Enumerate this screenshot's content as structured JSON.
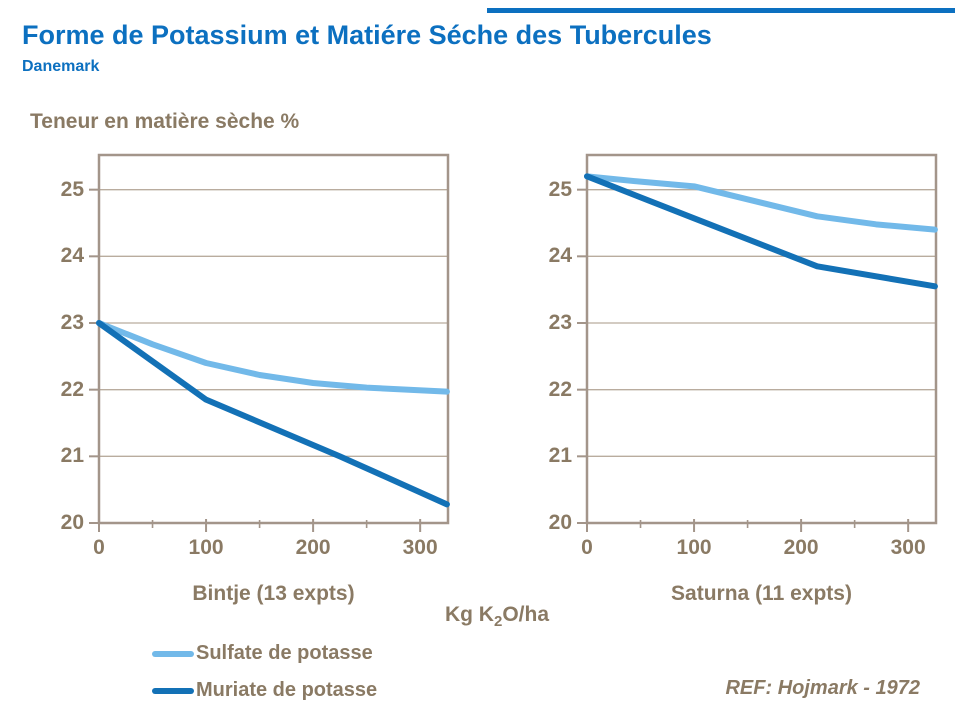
{
  "page": {
    "title": "Forme de Potassium et Matiére Séche des Tubercules",
    "subtitle": "Danemark",
    "y_axis_title": "Teneur en matière sèche %",
    "x_axis_title_pre": "Kg K",
    "x_axis_title_sub": "2",
    "x_axis_title_post": "O/ha",
    "reference": "REF: Hojmark - 1972"
  },
  "colors": {
    "accent_blue": "#0c70c0",
    "text_brown": "#8a7a64",
    "plot_border": "#a3958a",
    "gridline": "#b9ac9e",
    "sulfate_light_blue": "#72b9e9",
    "muriate_dark_blue": "#1371b6"
  },
  "legend": {
    "items": [
      {
        "label": "Sulfate de potasse",
        "color": "#72b9e9"
      },
      {
        "label": "Muriate de potasse",
        "color": "#1371b6"
      }
    ]
  },
  "chart_data": [
    {
      "type": "line",
      "title": "Bintje (13 expts)",
      "xlabel": "Kg K2O/ha",
      "ylabel": "Teneur en matière sèche %",
      "xlim": [
        0,
        326
      ],
      "ylim": [
        20,
        25.52
      ],
      "x_ticks": [
        0,
        100,
        200,
        300
      ],
      "x_minor_ticks": [
        50,
        150,
        250
      ],
      "y_ticks": [
        20,
        21,
        22,
        23,
        24,
        25
      ],
      "grid": "horizontal",
      "legend_position": "below-left",
      "series": [
        {
          "name": "Sulfate de potasse",
          "color": "#72b9e9",
          "points": [
            [
              0,
              23.0
            ],
            [
              50,
              22.68
            ],
            [
              100,
              22.4
            ],
            [
              150,
              22.22
            ],
            [
              200,
              22.1
            ],
            [
              250,
              22.03
            ],
            [
              325,
              21.97
            ]
          ]
        },
        {
          "name": "Muriate de potasse",
          "color": "#1371b6",
          "points": [
            [
              0,
              23.0
            ],
            [
              100,
              21.85
            ],
            [
              225,
              21.0
            ],
            [
              325,
              20.28
            ]
          ]
        }
      ]
    },
    {
      "type": "line",
      "title": "Saturna (11 expts)",
      "xlabel": "Kg K2O/ha",
      "ylabel": "Teneur en matière sèche %",
      "xlim": [
        0,
        326
      ],
      "ylim": [
        20,
        25.52
      ],
      "x_ticks": [
        0,
        100,
        200,
        300
      ],
      "x_minor_ticks": [
        50,
        150,
        250
      ],
      "y_ticks": [
        20,
        21,
        22,
        23,
        24,
        25
      ],
      "grid": "horizontal",
      "legend_position": "below-left",
      "series": [
        {
          "name": "Sulfate de potasse",
          "color": "#72b9e9",
          "points": [
            [
              0,
              25.2
            ],
            [
              50,
              25.12
            ],
            [
              100,
              25.05
            ],
            [
              215,
              24.6
            ],
            [
              270,
              24.48
            ],
            [
              325,
              24.4
            ]
          ]
        },
        {
          "name": "Muriate de potasse",
          "color": "#1371b6",
          "points": [
            [
              0,
              25.2
            ],
            [
              100,
              24.57
            ],
            [
              215,
              23.85
            ],
            [
              325,
              23.55
            ]
          ]
        }
      ]
    }
  ]
}
